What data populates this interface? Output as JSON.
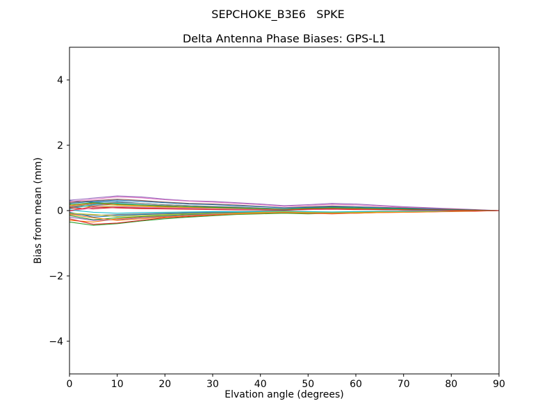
{
  "chart_data": {
    "type": "line",
    "suptitle": "SEPCHOKE_B3E6   SPKE",
    "title": "Delta Antenna Phase Biases: GPS-L1",
    "xlabel": "Elvation angle (degrees)",
    "ylabel": "Bias from mean (mm)",
    "xlim": [
      0,
      90
    ],
    "ylim": [
      -5,
      5
    ],
    "xticks": [
      0,
      10,
      20,
      30,
      40,
      50,
      60,
      70,
      80,
      90
    ],
    "yticks": [
      -4,
      -2,
      0,
      2,
      4
    ],
    "grid": false,
    "legend": "none",
    "axis_color": "#000000",
    "x": [
      0,
      5,
      10,
      15,
      20,
      25,
      30,
      35,
      40,
      45,
      50,
      55,
      60,
      65,
      70,
      75,
      80,
      85,
      90
    ],
    "series": [
      {
        "name": "line-01",
        "color": "#1f77b4",
        "values": [
          0.3,
          0.25,
          0.28,
          0.22,
          0.18,
          0.15,
          0.12,
          0.1,
          0.05,
          0.02,
          0.06,
          0.08,
          0.06,
          0.05,
          0.04,
          0.03,
          0.02,
          0.01,
          0.0
        ]
      },
      {
        "name": "line-02",
        "color": "#ff7f0e",
        "values": [
          -0.3,
          -0.35,
          -0.25,
          -0.2,
          -0.17,
          -0.15,
          -0.12,
          -0.1,
          -0.08,
          -0.05,
          -0.06,
          -0.05,
          -0.05,
          -0.04,
          -0.03,
          -0.02,
          -0.02,
          -0.01,
          0.0
        ]
      },
      {
        "name": "line-03",
        "color": "#2ca02c",
        "values": [
          -0.35,
          -0.45,
          -0.4,
          -0.32,
          -0.25,
          -0.2,
          -0.16,
          -0.12,
          -0.1,
          -0.08,
          -0.1,
          -0.08,
          -0.07,
          -0.05,
          -0.04,
          -0.03,
          -0.02,
          -0.01,
          0.0
        ]
      },
      {
        "name": "line-04",
        "color": "#d62728",
        "values": [
          -0.25,
          -0.42,
          -0.38,
          -0.3,
          -0.22,
          -0.18,
          -0.14,
          -0.1,
          -0.06,
          -0.05,
          -0.08,
          -0.1,
          -0.08,
          -0.06,
          -0.05,
          -0.04,
          -0.03,
          -0.02,
          0.0
        ]
      },
      {
        "name": "line-05",
        "color": "#9467bd",
        "values": [
          0.32,
          0.38,
          0.45,
          0.42,
          0.35,
          0.3,
          0.28,
          0.24,
          0.2,
          0.15,
          0.18,
          0.22,
          0.2,
          0.16,
          0.12,
          0.09,
          0.06,
          0.03,
          0.0
        ]
      },
      {
        "name": "line-06",
        "color": "#8c564b",
        "values": [
          0.1,
          0.15,
          0.2,
          0.18,
          0.15,
          0.12,
          0.1,
          0.08,
          0.05,
          0.03,
          0.06,
          0.08,
          0.07,
          0.05,
          0.04,
          0.03,
          0.02,
          0.01,
          0.0
        ]
      },
      {
        "name": "line-07",
        "color": "#e377c2",
        "values": [
          0.28,
          0.34,
          0.42,
          0.39,
          0.33,
          0.29,
          0.26,
          0.22,
          0.18,
          0.13,
          0.16,
          0.19,
          0.17,
          0.14,
          0.1,
          0.07,
          0.05,
          0.02,
          0.0
        ]
      },
      {
        "name": "line-08",
        "color": "#7f7f7f",
        "values": [
          -0.1,
          -0.15,
          -0.12,
          -0.1,
          -0.08,
          -0.06,
          -0.05,
          -0.04,
          -0.03,
          -0.02,
          -0.04,
          -0.05,
          -0.04,
          -0.03,
          -0.02,
          -0.02,
          -0.01,
          -0.01,
          0.0
        ]
      },
      {
        "name": "line-09",
        "color": "#bcbd22",
        "values": [
          0.2,
          0.1,
          0.15,
          0.12,
          0.1,
          0.08,
          0.07,
          0.05,
          0.04,
          0.02,
          0.05,
          0.06,
          0.05,
          0.04,
          0.03,
          0.02,
          0.02,
          0.01,
          0.0
        ]
      },
      {
        "name": "line-10",
        "color": "#17becf",
        "values": [
          0.05,
          0.18,
          0.22,
          0.18,
          0.14,
          0.11,
          0.09,
          0.07,
          0.05,
          0.02,
          0.05,
          0.07,
          0.06,
          0.04,
          0.03,
          0.02,
          0.02,
          0.01,
          0.0
        ]
      },
      {
        "name": "line-11",
        "color": "#1f77b4",
        "values": [
          -0.05,
          -0.2,
          -0.15,
          -0.12,
          -0.1,
          -0.08,
          -0.06,
          -0.05,
          -0.04,
          -0.03,
          -0.05,
          -0.06,
          -0.05,
          -0.04,
          -0.03,
          -0.02,
          -0.01,
          -0.01,
          0.0
        ]
      },
      {
        "name": "line-12",
        "color": "#ff7f0e",
        "values": [
          0.15,
          0.22,
          0.18,
          0.15,
          0.12,
          0.1,
          0.09,
          0.07,
          0.05,
          0.03,
          0.05,
          0.06,
          0.05,
          0.04,
          0.03,
          0.02,
          0.02,
          0.01,
          0.0
        ]
      },
      {
        "name": "line-13",
        "color": "#2ca02c",
        "values": [
          -0.15,
          -0.28,
          -0.22,
          -0.18,
          -0.15,
          -0.12,
          -0.1,
          -0.08,
          -0.06,
          -0.04,
          -0.06,
          -0.07,
          -0.06,
          -0.05,
          -0.04,
          -0.03,
          -0.02,
          -0.01,
          0.0
        ]
      },
      {
        "name": "line-14",
        "color": "#d62728",
        "values": [
          0.08,
          0.05,
          0.1,
          0.08,
          0.07,
          0.05,
          0.04,
          0.03,
          0.02,
          0.01,
          0.03,
          0.04,
          0.03,
          0.03,
          0.02,
          0.01,
          0.01,
          0.0,
          0.0
        ]
      },
      {
        "name": "line-15",
        "color": "#9467bd",
        "values": [
          -0.2,
          -0.3,
          -0.28,
          -0.22,
          -0.18,
          -0.14,
          -0.11,
          -0.09,
          -0.07,
          -0.05,
          -0.07,
          -0.08,
          -0.07,
          -0.05,
          -0.04,
          -0.03,
          -0.02,
          -0.01,
          0.0
        ]
      },
      {
        "name": "line-16",
        "color": "#8c564b",
        "values": [
          0.25,
          0.3,
          0.35,
          0.31,
          0.26,
          0.22,
          0.2,
          0.17,
          0.13,
          0.09,
          0.12,
          0.14,
          0.12,
          0.1,
          0.08,
          0.06,
          0.04,
          0.02,
          0.0
        ]
      },
      {
        "name": "line-17",
        "color": "#e377c2",
        "values": [
          -0.02,
          0.08,
          0.12,
          0.1,
          0.08,
          0.07,
          0.05,
          0.04,
          0.03,
          0.02,
          0.03,
          0.04,
          0.04,
          0.03,
          0.02,
          0.01,
          0.01,
          0.0,
          0.0
        ]
      },
      {
        "name": "line-18",
        "color": "#7f7f7f",
        "values": [
          0.12,
          0.2,
          0.25,
          0.22,
          0.18,
          0.15,
          0.13,
          0.11,
          0.08,
          0.05,
          0.08,
          0.1,
          0.09,
          0.07,
          0.05,
          0.04,
          0.02,
          0.01,
          0.0
        ]
      },
      {
        "name": "line-19",
        "color": "#bcbd22",
        "values": [
          -0.08,
          -0.12,
          -0.18,
          -0.15,
          -0.12,
          -0.1,
          -0.08,
          -0.07,
          -0.05,
          -0.03,
          -0.05,
          -0.06,
          -0.05,
          -0.04,
          -0.03,
          -0.02,
          -0.02,
          -0.01,
          0.0
        ]
      },
      {
        "name": "line-20",
        "color": "#17becf",
        "values": [
          0.02,
          -0.05,
          -0.08,
          -0.06,
          -0.05,
          -0.04,
          -0.03,
          -0.03,
          -0.02,
          -0.01,
          -0.03,
          -0.04,
          -0.03,
          -0.02,
          -0.02,
          -0.01,
          -0.01,
          0.0,
          0.0
        ]
      },
      {
        "name": "line-21",
        "color": "#1f77b4",
        "values": [
          0.22,
          0.28,
          0.32,
          0.28,
          0.24,
          0.2,
          0.18,
          0.15,
          0.12,
          0.08,
          0.1,
          0.12,
          0.11,
          0.09,
          0.07,
          0.05,
          0.03,
          0.01,
          0.0
        ]
      },
      {
        "name": "line-22",
        "color": "#ff7f0e",
        "values": [
          -0.12,
          -0.22,
          -0.3,
          -0.25,
          -0.2,
          -0.16,
          -0.13,
          -0.1,
          -0.08,
          -0.06,
          -0.08,
          -0.09,
          -0.08,
          -0.06,
          -0.05,
          -0.04,
          -0.02,
          -0.01,
          0.0
        ]
      },
      {
        "name": "line-23",
        "color": "#2ca02c",
        "values": [
          0.18,
          0.24,
          0.2,
          0.17,
          0.14,
          0.12,
          0.1,
          0.08,
          0.06,
          0.04,
          0.07,
          0.09,
          0.08,
          0.06,
          0.05,
          0.03,
          0.02,
          0.01,
          0.0
        ]
      },
      {
        "name": "line-24",
        "color": "#d62728",
        "values": [
          0.0,
          0.12,
          0.08,
          0.06,
          0.05,
          0.04,
          0.03,
          0.02,
          0.02,
          0.01,
          0.04,
          0.05,
          0.04,
          0.03,
          0.02,
          0.02,
          0.01,
          0.0,
          0.0
        ]
      }
    ]
  }
}
